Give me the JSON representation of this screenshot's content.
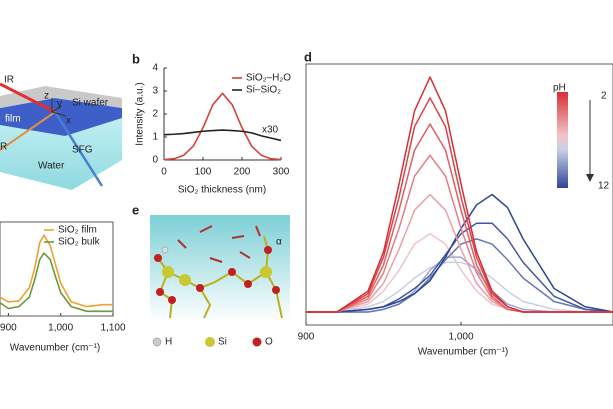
{
  "panel_labels": [
    "b",
    "e",
    "d"
  ],
  "diagram_a": {
    "labels": {
      "ir": "IR",
      "axis_z": "z",
      "axis_y": "y",
      "axis_x": "x",
      "wafer": "Si wafer",
      "film": "film",
      "r": "R",
      "sfg": "SFG",
      "water": "Water"
    }
  },
  "panel_e": {
    "annotation": "α",
    "legend": [
      {
        "label": "H"
      },
      {
        "label": "Si"
      },
      {
        "label": "O"
      }
    ]
  },
  "chart_data": [
    {
      "type": "line",
      "xlabel": "SiO₂ thickness (nm)",
      "ylabel": "Intensity (a.u.)",
      "annotation": "x30",
      "x": [
        0,
        25,
        50,
        75,
        100,
        125,
        150,
        175,
        200,
        225,
        250,
        275,
        300
      ],
      "series": [
        {
          "name": "SiO₂–H₂O",
          "color": "#d8413a",
          "values": [
            0.02,
            0.05,
            0.2,
            0.6,
            1.4,
            2.4,
            2.9,
            2.4,
            1.4,
            0.6,
            0.2,
            0.05,
            0.02
          ]
        },
        {
          "name": "Si–SiO₂",
          "color": "#222222",
          "values": [
            1.1,
            1.12,
            1.15,
            1.2,
            1.25,
            1.28,
            1.3,
            1.28,
            1.25,
            1.18,
            1.05,
            0.95,
            0.85
          ]
        }
      ],
      "xlim": [
        0,
        300
      ],
      "ylim": [
        0,
        4
      ],
      "xticks": [
        0,
        100,
        200,
        300
      ],
      "yticks": [
        0,
        1,
        2,
        3,
        4
      ]
    },
    {
      "type": "line",
      "xlabel": "Wavenumber (cm⁻¹)",
      "x": [
        884,
        900,
        920,
        940,
        950,
        960,
        968,
        980,
        990,
        1000,
        1020,
        1050,
        1080,
        1100
      ],
      "series": [
        {
          "name": "SiO₂ film",
          "color": "#f0a030",
          "values": [
            0.2,
            0.15,
            0.16,
            0.3,
            0.5,
            0.78,
            0.86,
            0.75,
            0.55,
            0.35,
            0.15,
            0.1,
            0.12,
            0.12
          ]
        },
        {
          "name": "SiO₂ bulk",
          "color": "#6a9a3a",
          "values": [
            0.14,
            0.08,
            0.1,
            0.2,
            0.38,
            0.6,
            0.67,
            0.6,
            0.42,
            0.25,
            0.1,
            0.05,
            0.05,
            0.05
          ]
        }
      ],
      "xlim": [
        884,
        1100
      ],
      "ylim": [
        0,
        1
      ],
      "xticks": [
        900,
        {
          "value": 1000,
          "label": "1,000"
        },
        {
          "value": 1100,
          "label": "1,100"
        }
      ]
    },
    {
      "type": "line",
      "xlabel": "Wavenumber (cm⁻¹)",
      "x": [
        900,
        920,
        940,
        950,
        960,
        970,
        980,
        990,
        1000,
        1010,
        1020,
        1030,
        1040,
        1060,
        1080,
        1098
      ],
      "series": [
        {
          "color": "#f2c4c6",
          "values": [
            0.05,
            0.05,
            0.08,
            0.13,
            0.21,
            0.31,
            0.35,
            0.31,
            0.21,
            0.13,
            0.08,
            0.06,
            0.05,
            0.05,
            0.05,
            0.05
          ]
        },
        {
          "color": "#c9d0e6",
          "values": [
            0.05,
            0.05,
            0.07,
            0.09,
            0.13,
            0.18,
            0.22,
            0.24,
            0.24,
            0.22,
            0.18,
            0.13,
            0.09,
            0.06,
            0.05,
            0.05
          ]
        },
        {
          "color": "#9ba9d2",
          "values": [
            0.05,
            0.05,
            0.05,
            0.06,
            0.08,
            0.13,
            0.21,
            0.26,
            0.26,
            0.21,
            0.13,
            0.08,
            0.06,
            0.05,
            0.05,
            0.05
          ]
        },
        {
          "color": "#6679b8",
          "values": [
            0.05,
            0.05,
            0.05,
            0.06,
            0.08,
            0.12,
            0.18,
            0.25,
            0.31,
            0.33,
            0.31,
            0.25,
            0.18,
            0.09,
            0.06,
            0.05
          ]
        },
        {
          "color": "#4358a2",
          "values": [
            0.05,
            0.05,
            0.06,
            0.07,
            0.1,
            0.14,
            0.19,
            0.27,
            0.35,
            0.39,
            0.39,
            0.33,
            0.24,
            0.11,
            0.06,
            0.05
          ]
        },
        {
          "color": "#2f4596",
          "values": [
            0.05,
            0.05,
            0.06,
            0.07,
            0.09,
            0.12,
            0.17,
            0.26,
            0.37,
            0.46,
            0.5,
            0.45,
            0.33,
            0.14,
            0.07,
            0.05
          ]
        },
        {
          "color": "#eba0a3",
          "values": [
            0.05,
            0.05,
            0.09,
            0.16,
            0.29,
            0.44,
            0.5,
            0.44,
            0.29,
            0.16,
            0.09,
            0.06,
            0.05,
            0.05,
            0.05,
            0.05
          ]
        },
        {
          "color": "#e47c80",
          "values": [
            0.05,
            0.05,
            0.1,
            0.2,
            0.37,
            0.57,
            0.65,
            0.57,
            0.37,
            0.2,
            0.1,
            0.06,
            0.05,
            0.05,
            0.05,
            0.05
          ]
        },
        {
          "color": "#df5e63",
          "values": [
            0.05,
            0.05,
            0.11,
            0.23,
            0.44,
            0.67,
            0.77,
            0.67,
            0.44,
            0.23,
            0.11,
            0.06,
            0.05,
            0.05,
            0.05,
            0.05
          ]
        },
        {
          "color": "#da4349",
          "values": [
            0.05,
            0.05,
            0.12,
            0.26,
            0.49,
            0.76,
            0.87,
            0.76,
            0.49,
            0.26,
            0.12,
            0.07,
            0.05,
            0.05,
            0.05,
            0.05
          ]
        },
        {
          "color": "#d62f36",
          "values": [
            0.05,
            0.05,
            0.13,
            0.28,
            0.54,
            0.82,
            0.95,
            0.82,
            0.54,
            0.28,
            0.13,
            0.07,
            0.05,
            0.05,
            0.05,
            0.05
          ]
        }
      ],
      "xlim": [
        900,
        1098
      ],
      "ylim": [
        0,
        1
      ],
      "xticks": [
        900,
        {
          "value": 1000,
          "label": "1,000"
        }
      ],
      "colorbar": {
        "label": "pH",
        "min": 2,
        "max": 12,
        "colors": [
          "#d62f36",
          "#f2c4c6",
          "#c9d0e6",
          "#2f4596"
        ]
      }
    }
  ]
}
